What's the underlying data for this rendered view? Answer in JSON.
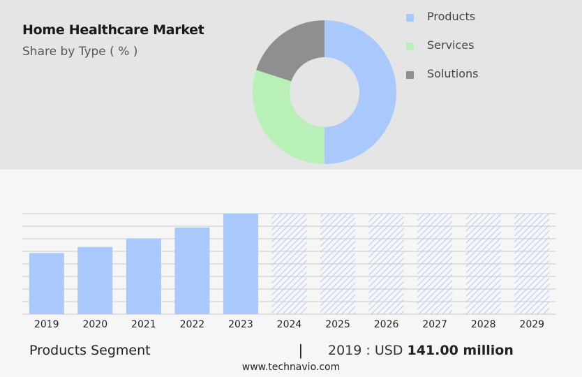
{
  "header": {
    "title": "Home Healthcare Market",
    "subtitle": "Share by Type ( % )"
  },
  "chart_data": [
    {
      "type": "pie",
      "variant": "donut",
      "labels": [
        "Products",
        "Services",
        "Solutions"
      ],
      "values": [
        50,
        30,
        20
      ],
      "colors": [
        "#a9c8fb",
        "#b8f0b8",
        "#8f8f8f"
      ],
      "legend": "right"
    },
    {
      "type": "bar",
      "categories": [
        "2019",
        "2020",
        "2021",
        "2022",
        "2023",
        "2024",
        "2025",
        "2026",
        "2027",
        "2028",
        "2029"
      ],
      "values": [
        141.0,
        155,
        175,
        200,
        232,
        232,
        232,
        232,
        232,
        232,
        232
      ],
      "forecast_from": "2024",
      "ylim": [
        0,
        232
      ],
      "grid": true,
      "colors": {
        "actual": "#a9c8fb",
        "forecast_hatch": "#b3cdf7"
      }
    }
  ],
  "footer": {
    "segment_label": "Products Segment",
    "separator": "|",
    "value_prefix": "2019 : USD",
    "value_bold": "141.00 million",
    "site": "www.technavio.com"
  }
}
